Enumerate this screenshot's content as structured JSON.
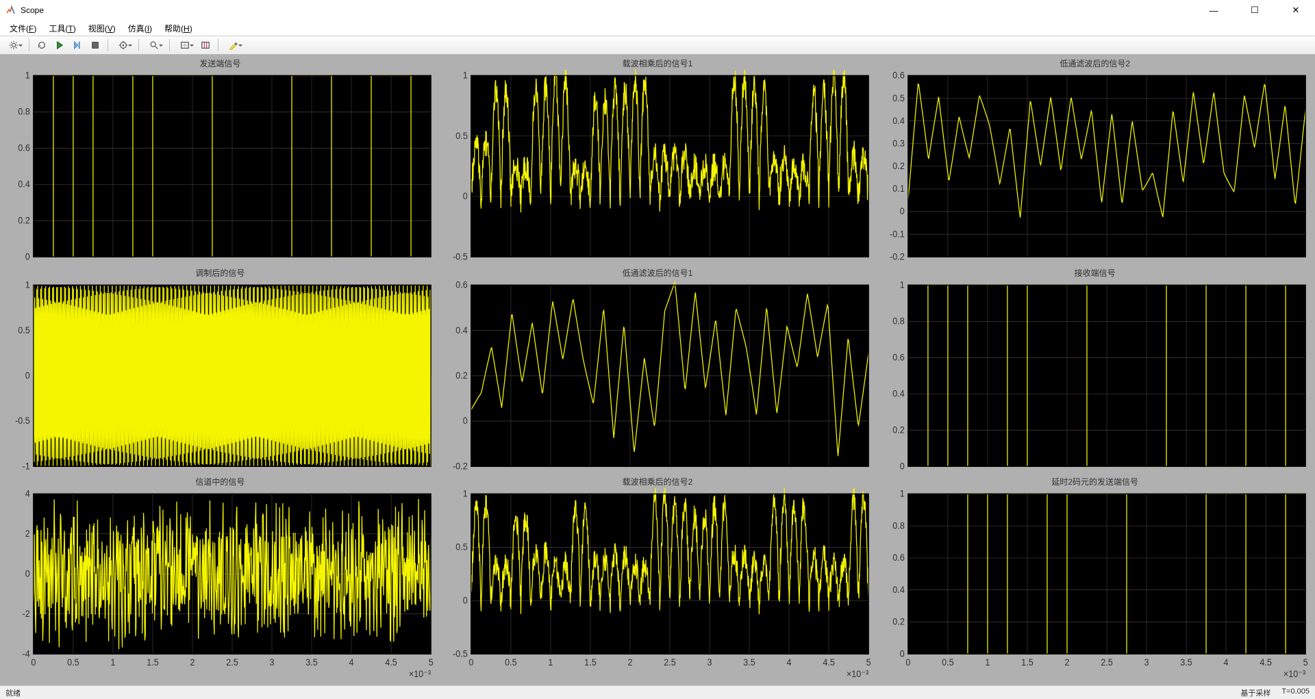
{
  "window": {
    "title": "Scope",
    "icon_colors": {
      "top": "#d85a2c",
      "mid": "#3a78c2",
      "bot": "#7fae3a"
    }
  },
  "menus": [
    {
      "label": "文件",
      "hotkey": "F"
    },
    {
      "label": "工具",
      "hotkey": "T"
    },
    {
      "label": "视图",
      "hotkey": "V"
    },
    {
      "label": "仿真",
      "hotkey": "I"
    },
    {
      "label": "帮助",
      "hotkey": "H"
    }
  ],
  "toolbar": [
    {
      "name": "config-button",
      "type": "gear",
      "dd": true
    },
    {
      "name": "sep"
    },
    {
      "name": "restart-button",
      "type": "reload",
      "dd": false
    },
    {
      "name": "run-button",
      "type": "play",
      "dd": false
    },
    {
      "name": "step-button",
      "type": "step",
      "dd": false
    },
    {
      "name": "stop-button",
      "type": "stop",
      "dd": false
    },
    {
      "name": "sep"
    },
    {
      "name": "triggers-button",
      "type": "target",
      "dd": true
    },
    {
      "name": "sep"
    },
    {
      "name": "zoom-button",
      "type": "zoom",
      "dd": true
    },
    {
      "name": "sep"
    },
    {
      "name": "autoscale-button",
      "type": "square",
      "dd": true
    },
    {
      "name": "cursors-button",
      "type": "cursor",
      "dd": false
    },
    {
      "name": "sep"
    },
    {
      "name": "highlight-button",
      "type": "marker",
      "dd": true
    }
  ],
  "scope": {
    "time_axis": {
      "min": 0,
      "max": 5,
      "ticks": [
        0,
        0.5,
        1,
        1.5,
        2,
        2.5,
        3,
        3.5,
        4,
        4.5,
        5
      ],
      "exponent_label": "×10⁻³"
    },
    "style": {
      "bg": "#000000",
      "grid": "#404040",
      "frame": "#000000",
      "line_color": "#f5f500",
      "line_width": 1,
      "tick_color": "#303030",
      "tick_font_size": 10,
      "title_color": "#303030",
      "panel_bg": "#b0b0b0"
    },
    "plots": [
      {
        "title": "发送端信号",
        "ylim": [
          0,
          1
        ],
        "yticks": [
          0,
          0.2,
          0.4,
          0.6,
          0.8,
          1
        ],
        "signal": "digital",
        "bit_width": 0.25,
        "bits": [
          0,
          1,
          0,
          1,
          1,
          0,
          1,
          1,
          1,
          0,
          0,
          0,
          0,
          1,
          1,
          0,
          0,
          1,
          1,
          0
        ]
      },
      {
        "title": "载波相乘后的信号1",
        "ylim": [
          -0.5,
          1
        ],
        "yticks": [
          -0.5,
          0,
          0.5,
          1
        ],
        "signal": "psk",
        "baseline": 0,
        "noise": 0.12,
        "carrier_periods": 40,
        "envelope": [
          0.5,
          1.0,
          0.3,
          1.0,
          1.1,
          0.3,
          0.9,
          1.0,
          1.1,
          0.4,
          0.4,
          0.3,
          0.3,
          1.1,
          1.0,
          0.4,
          0.3,
          1.0,
          1.1,
          0.4
        ]
      },
      {
        "title": "低通滤波后的信号2",
        "ylim": [
          -0.2,
          0.6
        ],
        "yticks": [
          -0.2,
          -0.1,
          0,
          0.1,
          0.2,
          0.3,
          0.4,
          0.5,
          0.6
        ],
        "signal": "filtered",
        "points": [
          0.05,
          0.55,
          0.2,
          0.5,
          0.15,
          0.45,
          0.25,
          0.5,
          0.35,
          0.1,
          0.38,
          0.0,
          0.52,
          0.2,
          0.48,
          0.15,
          0.5,
          0.25,
          0.48,
          0.05,
          0.42,
          0.0,
          0.38,
          0.1,
          0.2,
          0.0,
          0.45,
          0.1,
          0.5,
          0.2,
          0.55,
          0.2,
          0.1,
          0.5,
          0.25,
          0.55,
          0.15,
          0.5,
          0.05,
          0.45
        ]
      },
      {
        "title": "调制后的信号",
        "ylim": [
          -1,
          1
        ],
        "yticks": [
          -1,
          -0.5,
          0,
          0.5,
          1
        ],
        "signal": "dense",
        "freq": 400,
        "amp": 1.0
      },
      {
        "title": "低通滤波后的信号1",
        "ylim": [
          -0.2,
          0.6
        ],
        "yticks": [
          -0.2,
          0,
          0.2,
          0.4,
          0.6
        ],
        "signal": "filtered",
        "points": [
          0.05,
          0.1,
          0.3,
          0.05,
          0.5,
          0.2,
          0.45,
          0.1,
          0.5,
          0.25,
          0.55,
          0.3,
          0.1,
          0.5,
          -0.1,
          0.4,
          -0.15,
          0.3,
          0.0,
          0.5,
          0.6,
          0.1,
          0.55,
          0.15,
          0.48,
          0.05,
          0.5,
          0.3,
          0.0,
          0.5,
          0.05,
          0.45,
          0.25,
          0.55,
          0.25,
          0.5,
          -0.15,
          0.4,
          0.0,
          0.3
        ]
      },
      {
        "title": "接收端信号",
        "ylim": [
          0,
          1
        ],
        "yticks": [
          0,
          0.2,
          0.4,
          0.6,
          0.8,
          1
        ],
        "signal": "digital",
        "bit_width": 0.25,
        "bits": [
          0,
          1,
          0,
          1,
          1,
          0,
          1,
          1,
          1,
          0,
          0,
          0,
          0,
          1,
          1,
          0,
          0,
          1,
          1,
          0
        ]
      },
      {
        "title": "信道中的信号",
        "ylim": [
          -4,
          4
        ],
        "yticks": [
          -4,
          -2,
          0,
          2,
          4
        ],
        "signal": "noise",
        "samples": 900,
        "amp": 2.8
      },
      {
        "title": "载波相乘后的信号2",
        "ylim": [
          -0.5,
          1
        ],
        "yticks": [
          -0.5,
          0,
          0.5,
          1
        ],
        "signal": "psk",
        "baseline": 0,
        "noise": 0.12,
        "carrier_periods": 40,
        "envelope": [
          1.0,
          0.4,
          0.9,
          0.5,
          0.4,
          1.0,
          0.45,
          0.5,
          0.4,
          1.1,
          1.0,
          0.9,
          1.0,
          0.5,
          0.4,
          1.1,
          1.0,
          0.5,
          0.4,
          1.1
        ]
      },
      {
        "title": "延时2码元的发送端信号",
        "ylim": [
          0,
          1
        ],
        "yticks": [
          0,
          0.2,
          0.4,
          0.6,
          0.8,
          1
        ],
        "signal": "digital",
        "bit_width": 0.25,
        "bits": [
          0,
          0,
          0,
          1,
          0,
          1,
          1,
          0,
          1,
          1,
          1,
          0,
          0,
          0,
          0,
          1,
          1,
          0,
          0,
          1
        ]
      }
    ]
  },
  "status": {
    "left": "就绪",
    "mode": "基于采样",
    "time": "T=0.005"
  }
}
